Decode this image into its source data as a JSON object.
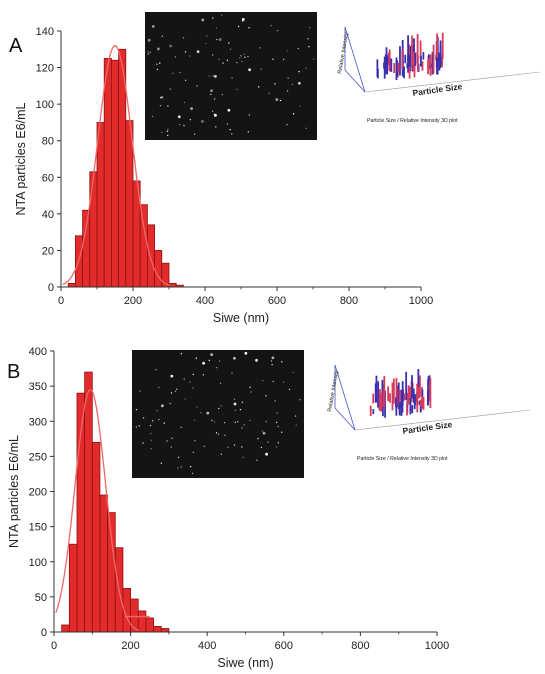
{
  "chart_data": [
    {
      "type": "bar",
      "panel_label": "A",
      "ylabel": "NTA particles E6/mL",
      "xlabel": "Siwe (nm)",
      "xlim": [
        0,
        1000
      ],
      "ylim": [
        0,
        140
      ],
      "xticks": [
        0,
        200,
        400,
        600,
        800,
        1000
      ],
      "yticks": [
        0,
        20,
        40,
        60,
        80,
        100,
        120,
        140
      ],
      "bin_width": 20,
      "x": [
        30,
        50,
        70,
        90,
        110,
        130,
        150,
        170,
        190,
        210,
        230,
        250,
        270,
        290,
        310,
        330
      ],
      "values": [
        2,
        28,
        42,
        63,
        90,
        125,
        124,
        130,
        91,
        58,
        45,
        34,
        20,
        13,
        2,
        1
      ],
      "fit": {
        "type": "gaussian",
        "peak": 132,
        "center": 150,
        "width": 48
      },
      "inset_3d": {
        "axis_label": "Particle Size",
        "vertical_axis_label": "Relative Intensity",
        "caption": "Particle Size / Relative Intensity 3D plot"
      }
    },
    {
      "type": "bar",
      "panel_label": "B",
      "ylabel": "NTA particles E6/mL",
      "xlabel": "Siwe (nm)",
      "xlim": [
        0,
        1000
      ],
      "ylim": [
        0,
        400
      ],
      "xticks": [
        0,
        200,
        400,
        600,
        800,
        1000
      ],
      "yticks": [
        0,
        50,
        100,
        150,
        200,
        250,
        300,
        350,
        400
      ],
      "bin_width": 20,
      "x": [
        30,
        50,
        70,
        90,
        110,
        130,
        150,
        170,
        190,
        210,
        230,
        250,
        270,
        290
      ],
      "values": [
        10,
        125,
        340,
        370,
        270,
        195,
        170,
        120,
        62,
        47,
        30,
        20,
        8,
        5
      ],
      "fit": {
        "type": "gaussian",
        "peak": 345,
        "center": 95,
        "width": 40,
        "tail_x": [
          185,
          250
        ],
        "tail_y": [
          22,
          22
        ]
      },
      "inset_3d": {
        "axis_label": "Particle Size",
        "vertical_axis_label": "Relative Intensity",
        "caption": "Particle Size / Relative Intensity 3D plot"
      }
    }
  ],
  "colors": {
    "bar_fill": "#e32b2b",
    "bar_stroke": "#8a1212",
    "fit_line": "#f06868",
    "axis": "#333333",
    "micrograph_bg": "#141414",
    "inset_bar_a": "#3a2fb0",
    "inset_bar_b": "#d83a5a"
  }
}
